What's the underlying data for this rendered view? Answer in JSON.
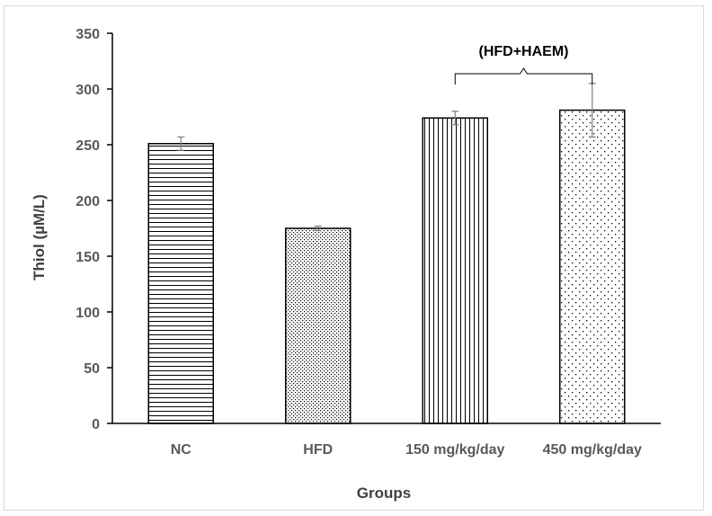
{
  "chart_data": {
    "type": "bar",
    "title": "",
    "xlabel": "Groups",
    "ylabel": "Thiol  (µM/L)",
    "ylim": [
      0,
      350
    ],
    "yticks": [
      "0",
      "50",
      "100",
      "150",
      "200",
      "250",
      "300",
      "350"
    ],
    "categories": [
      "NC",
      "HFD",
      "150 mg/kg/day",
      "450 mg/kg/day"
    ],
    "values": [
      251,
      175,
      274,
      281
    ],
    "errors": [
      6,
      2,
      6,
      24
    ],
    "patterns": [
      "horizontal-lines",
      "fine-dots",
      "vertical-lines",
      "sparse-dots"
    ],
    "bracket": {
      "label": "(HFD+HAEM)",
      "spans": [
        "150 mg/kg/day",
        "450 mg/kg/day"
      ]
    },
    "grid": false,
    "legend": "none"
  },
  "colors": {
    "bar_outline": "#000000",
    "pattern": "#000000",
    "error_bar": "#7f7f7f",
    "axis": "#000000",
    "label": "#595959"
  }
}
